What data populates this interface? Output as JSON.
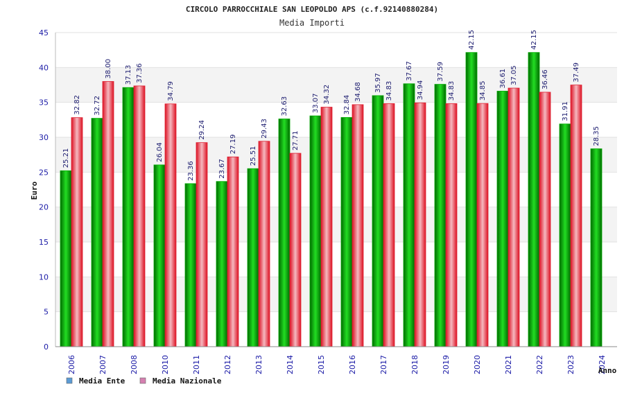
{
  "chart_data": {
    "type": "bar",
    "title": "CIRCOLO PARROCCHIALE SAN LEOPOLDO APS (c.f.92140880284)",
    "subtitle": "Media Importi",
    "xlabel": "Anno",
    "ylabel": "Euro",
    "ylim": [
      0,
      45
    ],
    "ytick_step": 5,
    "grid": true,
    "legend_position": "bottom-left",
    "categories": [
      "2006",
      "2007",
      "2008",
      "2010",
      "2011",
      "2012",
      "2013",
      "2014",
      "2015",
      "2016",
      "2017",
      "2018",
      "2019",
      "2020",
      "2021",
      "2022",
      "2023",
      "2024"
    ],
    "series": [
      {
        "name": "Media Ente",
        "color": "#00aa00",
        "legend_color": "#5b9bd5",
        "values": [
          25.21,
          32.72,
          37.13,
          26.04,
          23.36,
          23.67,
          25.51,
          32.63,
          33.07,
          32.84,
          35.97,
          37.67,
          37.59,
          42.15,
          36.61,
          42.15,
          31.91,
          28.35
        ],
        "labels": [
          "25.21",
          "32.72",
          "37.13",
          "26.04",
          "23.36",
          "23.67",
          "25.51",
          "32.63",
          "33.07",
          "32.84",
          "35.97",
          "37.67",
          "37.59",
          "42.15",
          "36.61",
          "42.15",
          "31.91",
          "28.35"
        ]
      },
      {
        "name": "Media Nazionale",
        "color": "#dd2233",
        "legend_color": "#d580b0",
        "values": [
          32.82,
          38.0,
          37.36,
          34.79,
          29.24,
          27.19,
          29.43,
          27.71,
          34.32,
          34.68,
          34.83,
          34.94,
          34.83,
          34.85,
          37.05,
          36.46,
          37.49,
          null
        ],
        "labels": [
          "32.82",
          "38.00",
          "37.36",
          "34.79",
          "29.24",
          "27.19",
          "29.43",
          "27.71",
          "34.32",
          "34.68",
          "34.83",
          "34.94",
          "34.83",
          "34.85",
          "37.05",
          "36.46",
          "37.49",
          ""
        ]
      }
    ]
  }
}
